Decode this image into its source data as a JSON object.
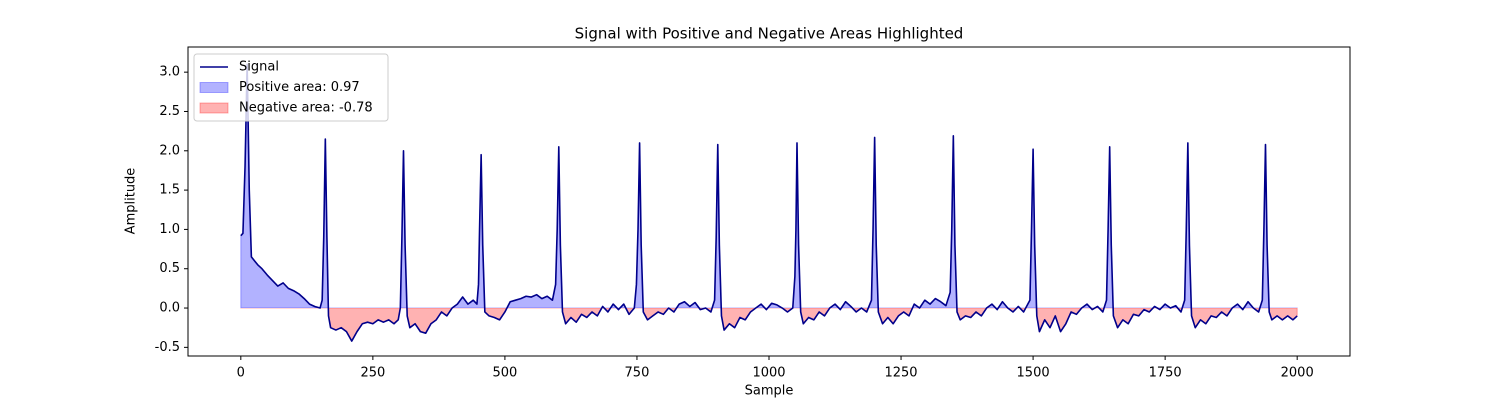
{
  "chart_data": {
    "type": "line",
    "title": "Signal with Positive and Negative Areas Highlighted",
    "xlabel": "Sample",
    "ylabel": "Amplitude",
    "x": [
      0,
      4,
      8,
      12,
      16,
      20,
      26,
      32,
      40,
      50,
      60,
      70,
      80,
      90,
      100,
      110,
      120,
      130,
      140,
      150,
      154,
      157,
      160,
      163,
      166,
      170,
      180,
      190,
      200,
      210,
      220,
      230,
      240,
      250,
      260,
      270,
      280,
      290,
      298,
      302,
      305,
      308,
      311,
      315,
      320,
      330,
      340,
      350,
      360,
      370,
      380,
      390,
      400,
      410,
      420,
      430,
      440,
      447,
      450,
      452,
      455,
      458,
      462,
      470,
      480,
      490,
      500,
      510,
      520,
      530,
      540,
      550,
      560,
      570,
      580,
      590,
      596,
      599,
      602,
      605,
      609,
      615,
      625,
      635,
      645,
      655,
      665,
      675,
      685,
      695,
      705,
      715,
      725,
      735,
      745,
      749,
      752,
      755,
      758,
      762,
      770,
      780,
      790,
      800,
      810,
      820,
      830,
      840,
      850,
      860,
      870,
      880,
      890,
      897,
      900,
      903,
      906,
      910,
      915,
      925,
      935,
      945,
      955,
      965,
      975,
      985,
      995,
      1005,
      1015,
      1025,
      1035,
      1045,
      1049,
      1051,
      1053,
      1056,
      1060,
      1065,
      1075,
      1085,
      1095,
      1105,
      1115,
      1125,
      1135,
      1145,
      1155,
      1165,
      1175,
      1185,
      1194,
      1197,
      1200,
      1203,
      1207,
      1215,
      1225,
      1235,
      1245,
      1255,
      1265,
      1275,
      1285,
      1295,
      1305,
      1315,
      1325,
      1335,
      1343,
      1346,
      1349,
      1352,
      1356,
      1362,
      1372,
      1382,
      1392,
      1402,
      1412,
      1422,
      1432,
      1442,
      1452,
      1462,
      1472,
      1482,
      1494,
      1497,
      1500,
      1503,
      1507,
      1512,
      1522,
      1532,
      1542,
      1552,
      1562,
      1572,
      1582,
      1592,
      1602,
      1612,
      1622,
      1632,
      1639,
      1642,
      1645,
      1648,
      1652,
      1660,
      1670,
      1680,
      1690,
      1700,
      1710,
      1720,
      1730,
      1740,
      1750,
      1760,
      1770,
      1780,
      1787,
      1790,
      1793,
      1796,
      1800,
      1807,
      1817,
      1827,
      1837,
      1847,
      1857,
      1867,
      1877,
      1887,
      1897,
      1907,
      1917,
      1927,
      1934,
      1937,
      1940,
      1943,
      1947,
      1952,
      1962,
      1972,
      1982,
      1992,
      2000
    ],
    "series": [
      {
        "name": "Signal",
        "color": "#00008b",
        "values": [
          0.92,
          0.95,
          1.8,
          3.1,
          1.5,
          0.65,
          0.6,
          0.55,
          0.5,
          0.42,
          0.35,
          0.28,
          0.32,
          0.25,
          0.22,
          0.18,
          0.12,
          0.05,
          0.02,
          0.0,
          0.1,
          0.9,
          2.15,
          0.9,
          -0.1,
          -0.25,
          -0.28,
          -0.25,
          -0.3,
          -0.42,
          -0.3,
          -0.2,
          -0.18,
          -0.2,
          -0.15,
          -0.18,
          -0.15,
          -0.2,
          -0.15,
          0.0,
          0.9,
          2.0,
          0.8,
          -0.1,
          -0.25,
          -0.2,
          -0.3,
          -0.32,
          -0.2,
          -0.15,
          -0.05,
          -0.1,
          0.0,
          0.05,
          0.14,
          0.05,
          0.1,
          0.05,
          0.3,
          1.0,
          1.95,
          0.8,
          -0.05,
          -0.1,
          -0.12,
          -0.15,
          -0.05,
          0.08,
          0.1,
          0.12,
          0.15,
          0.14,
          0.17,
          0.12,
          0.15,
          0.1,
          0.3,
          1.0,
          2.05,
          0.8,
          -0.05,
          -0.2,
          -0.12,
          -0.18,
          -0.08,
          -0.12,
          -0.05,
          -0.1,
          0.02,
          -0.05,
          0.05,
          -0.02,
          0.05,
          -0.08,
          0.0,
          0.3,
          1.0,
          2.1,
          0.8,
          -0.05,
          -0.15,
          -0.1,
          -0.05,
          -0.08,
          0.0,
          -0.05,
          0.05,
          0.08,
          0.02,
          0.07,
          -0.02,
          0.0,
          -0.05,
          0.1,
          0.9,
          2.08,
          0.8,
          -0.1,
          -0.28,
          -0.2,
          -0.25,
          -0.12,
          -0.15,
          -0.05,
          0.0,
          0.05,
          -0.02,
          0.06,
          0.04,
          0.0,
          -0.05,
          0.0,
          0.4,
          1.0,
          2.1,
          0.8,
          -0.05,
          -0.2,
          -0.12,
          -0.15,
          -0.05,
          -0.1,
          0.0,
          0.05,
          -0.02,
          0.08,
          0.02,
          -0.05,
          0.0,
          -0.05,
          0.1,
          1.0,
          2.17,
          0.8,
          -0.05,
          -0.2,
          -0.12,
          -0.2,
          -0.1,
          -0.05,
          -0.1,
          0.05,
          0.0,
          0.1,
          0.05,
          0.12,
          0.08,
          0.03,
          0.2,
          1.0,
          2.19,
          0.8,
          -0.05,
          -0.15,
          -0.1,
          -0.12,
          -0.05,
          -0.1,
          0.0,
          0.05,
          -0.02,
          0.08,
          0.0,
          -0.05,
          0.02,
          -0.05,
          0.1,
          1.0,
          2.02,
          0.8,
          -0.1,
          -0.3,
          -0.15,
          -0.25,
          -0.1,
          -0.3,
          -0.2,
          -0.05,
          -0.08,
          0.0,
          0.05,
          -0.02,
          0.02,
          -0.05,
          0.1,
          1.0,
          2.05,
          0.8,
          -0.1,
          -0.25,
          -0.15,
          -0.2,
          -0.08,
          -0.1,
          -0.02,
          -0.05,
          0.02,
          -0.02,
          0.05,
          0.0,
          0.03,
          -0.05,
          0.1,
          1.0,
          2.1,
          0.8,
          -0.1,
          -0.25,
          -0.15,
          -0.2,
          -0.1,
          -0.12,
          -0.05,
          -0.1,
          0.0,
          0.05,
          -0.02,
          0.08,
          0.0,
          -0.05,
          0.1,
          1.0,
          2.08,
          0.8,
          -0.05,
          -0.15,
          -0.1,
          -0.15,
          -0.1,
          -0.15,
          -0.1
        ]
      }
    ],
    "positive_area": {
      "name": "Positive area: 0.97",
      "color": "#0000ff"
    },
    "negative_area": {
      "name": "Negative area: -0.78",
      "color": "#ff0000"
    },
    "xlim": [
      -100,
      2100
    ],
    "xticks": [
      0,
      250,
      500,
      750,
      1000,
      1250,
      1500,
      1750,
      2000
    ],
    "ylim": [
      -0.61,
      3.32
    ],
    "yticks": [
      -0.5,
      {
        "value": 0,
        "label": "0.0"
      },
      0.5,
      {
        "value": 1,
        "label": "1.0"
      },
      1.5,
      {
        "value": 2,
        "label": "2.0"
      },
      2.5,
      {
        "value": 3,
        "label": "3.0"
      }
    ],
    "legend": "upper left"
  }
}
